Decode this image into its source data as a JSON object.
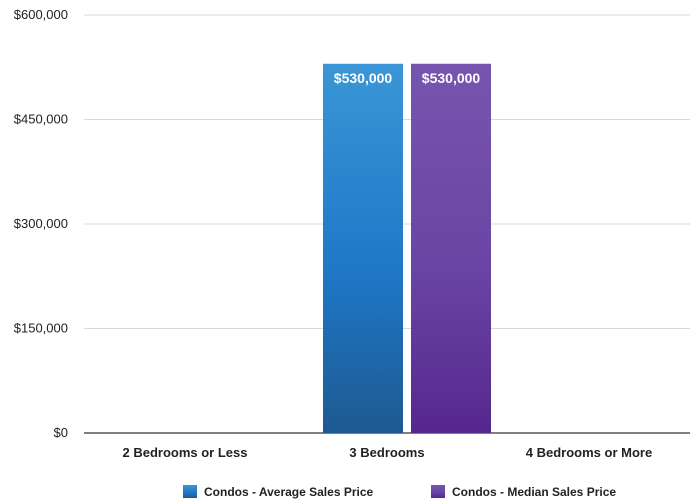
{
  "chart_data": {
    "type": "bar",
    "categories": [
      "2 Bedrooms or Less",
      "3 Bedrooms",
      "4 Bedrooms or More"
    ],
    "series": [
      {
        "name": "Condos - Average Sales Price",
        "values": [
          0,
          530000,
          0
        ],
        "color": "#1f78c8",
        "color_light": "#3a96d6",
        "color_dark": "#1d5a90"
      },
      {
        "name": "Condos - Median Sales Price",
        "values": [
          0,
          530000,
          0
        ],
        "color": "#6a45a4",
        "color_light": "#7755ae",
        "color_dark": "#56278e"
      }
    ],
    "data_labels": [
      {
        "series": 0,
        "category": 1,
        "text": "$530,000"
      },
      {
        "series": 1,
        "category": 1,
        "text": "$530,000"
      }
    ],
    "y_ticks": [
      {
        "value": 0,
        "label": "$0"
      },
      {
        "value": 150000,
        "label": "$150,000"
      },
      {
        "value": 300000,
        "label": "$300,000"
      },
      {
        "value": 450000,
        "label": "$450,000"
      },
      {
        "value": 600000,
        "label": "$600,000"
      }
    ],
    "ylim": [
      0,
      600000
    ],
    "grid": true,
    "legend": "bottom",
    "title": "",
    "xlabel": "",
    "ylabel": ""
  }
}
